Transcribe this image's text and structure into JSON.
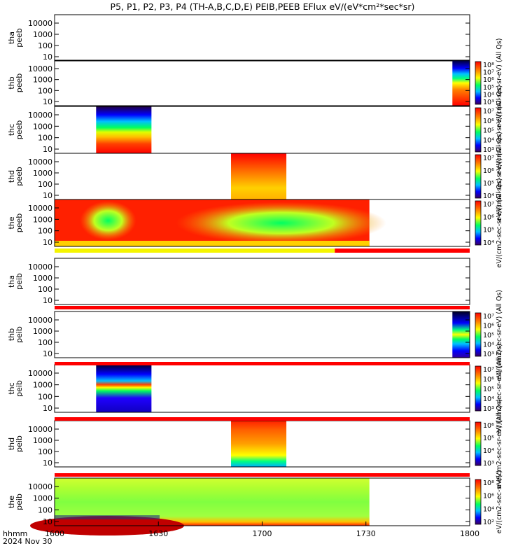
{
  "title": "P5, P1, P2, P3, P4 (TH-A,B,C,D,E) PEIB,PEEB EFlux eV/(eV*cm²*sec*sr)",
  "colors": {
    "strip_red": "#ff0000",
    "strip_yellow": "#f5f500",
    "frame": "#000000"
  },
  "chart_data": {
    "type": "heatmap",
    "title": "P5, P1, P2, P3, P4 (TH-A,B,C,D,E) PEIB,PEEB EFlux eV/(eV*cm²*sec*sr)",
    "x_axis": {
      "label_row1": "hhmm",
      "label_row2": "2024 Nov 30",
      "range": [
        "1600",
        "1800"
      ],
      "ticks": [
        "1600",
        "1630",
        "1700",
        "1730",
        "1800"
      ]
    },
    "y_axis_ticks": [
      "10",
      "100",
      "1000",
      "10000"
    ],
    "y_scale": "log",
    "colorbar_palette": [
      "#ffffff",
      "#ff0000",
      "#ff8000",
      "#ffff00",
      "#00ff00",
      "#00ffff",
      "#0000ff",
      "#8000ff",
      "#000000"
    ],
    "panels": [
      {
        "probe": "tha",
        "product": "peeb",
        "label": [
          "tha",
          "peeb"
        ],
        "colorbar": null,
        "data_blocks": []
      },
      {
        "probe": "thb",
        "product": "peeb",
        "label": [
          "thb",
          "peeb"
        ],
        "colorbar": {
          "ticks": [
            "10³",
            "10⁴",
            "10⁵",
            "10⁶",
            "10⁷",
            "10⁸"
          ],
          "unit": "eV/(cm2-sec-sr-eV) (All Qs)"
        },
        "data_blocks": [
          {
            "start": "1755",
            "end": "1800"
          }
        ]
      },
      {
        "probe": "thc",
        "product": "peeb",
        "label": [
          "thc",
          "peeb"
        ],
        "colorbar": {
          "ticks": [
            "10³",
            "10⁴",
            "10⁵",
            "10⁶",
            "10⁷"
          ],
          "unit": "eV/(cm2-sec-sr-eV) (All Qs)"
        },
        "data_blocks": [
          {
            "start": "1612",
            "end": "1628"
          }
        ]
      },
      {
        "probe": "thd",
        "product": "peeb",
        "label": [
          "thd",
          "peeb"
        ],
        "colorbar": {
          "ticks": [
            "10⁴",
            "10⁵",
            "10⁶",
            "10⁷"
          ],
          "unit": "eV/(cm2-sec-sr-eV) (All Qs)"
        },
        "data_blocks": [
          {
            "start": "1651",
            "end": "1707"
          }
        ]
      },
      {
        "probe": "the",
        "product": "peeb",
        "label": [
          "the",
          "peeb"
        ],
        "colorbar": {
          "ticks": [
            "10⁴",
            "10⁵",
            "10⁶",
            "10⁷"
          ],
          "unit": "eV/(cm2-sec-sr-eV) (All Qs)"
        },
        "data_blocks": [
          {
            "start": "1600",
            "end": "1731"
          }
        ]
      },
      {
        "probe": "tha",
        "product": "peib",
        "label": [
          "tha",
          "peib"
        ],
        "colorbar": null,
        "data_blocks": []
      },
      {
        "probe": "thb",
        "product": "peib",
        "label": [
          "thb",
          "peib"
        ],
        "colorbar": {
          "ticks": [
            "10³",
            "10⁴",
            "10⁵",
            "10⁶",
            "10⁷"
          ],
          "unit": "eV/(cm2-sec-sr-eV) (All Qs)"
        },
        "data_blocks": [
          {
            "start": "1755",
            "end": "1800"
          }
        ]
      },
      {
        "probe": "thc",
        "product": "peib",
        "label": [
          "thc",
          "peib"
        ],
        "colorbar": {
          "ticks": [
            "10³",
            "10⁴",
            "10⁵",
            "10⁶",
            "10⁷"
          ],
          "unit": "eV/(cm2-sec-sr-eV) (All Qs)"
        },
        "data_blocks": [
          {
            "start": "1612",
            "end": "1628"
          }
        ]
      },
      {
        "probe": "thd",
        "product": "peib",
        "label": [
          "thd",
          "peib"
        ],
        "colorbar": {
          "ticks": [
            "10³",
            "10⁴",
            "10⁵",
            "10⁶"
          ],
          "unit": "eV/(cm2-sec-sr-eV) (All Qs)"
        },
        "data_blocks": [
          {
            "start": "1651",
            "end": "1707"
          }
        ]
      },
      {
        "probe": "the",
        "product": "peib",
        "label": [
          "the",
          "peib"
        ],
        "colorbar": {
          "ticks": [
            "10²",
            "10⁴",
            "10⁶",
            "10⁸"
          ],
          "unit": "eV/(cm2-sec-sr-eV)"
        },
        "data_blocks": [
          {
            "start": "1600",
            "end": "1731"
          }
        ]
      }
    ]
  }
}
